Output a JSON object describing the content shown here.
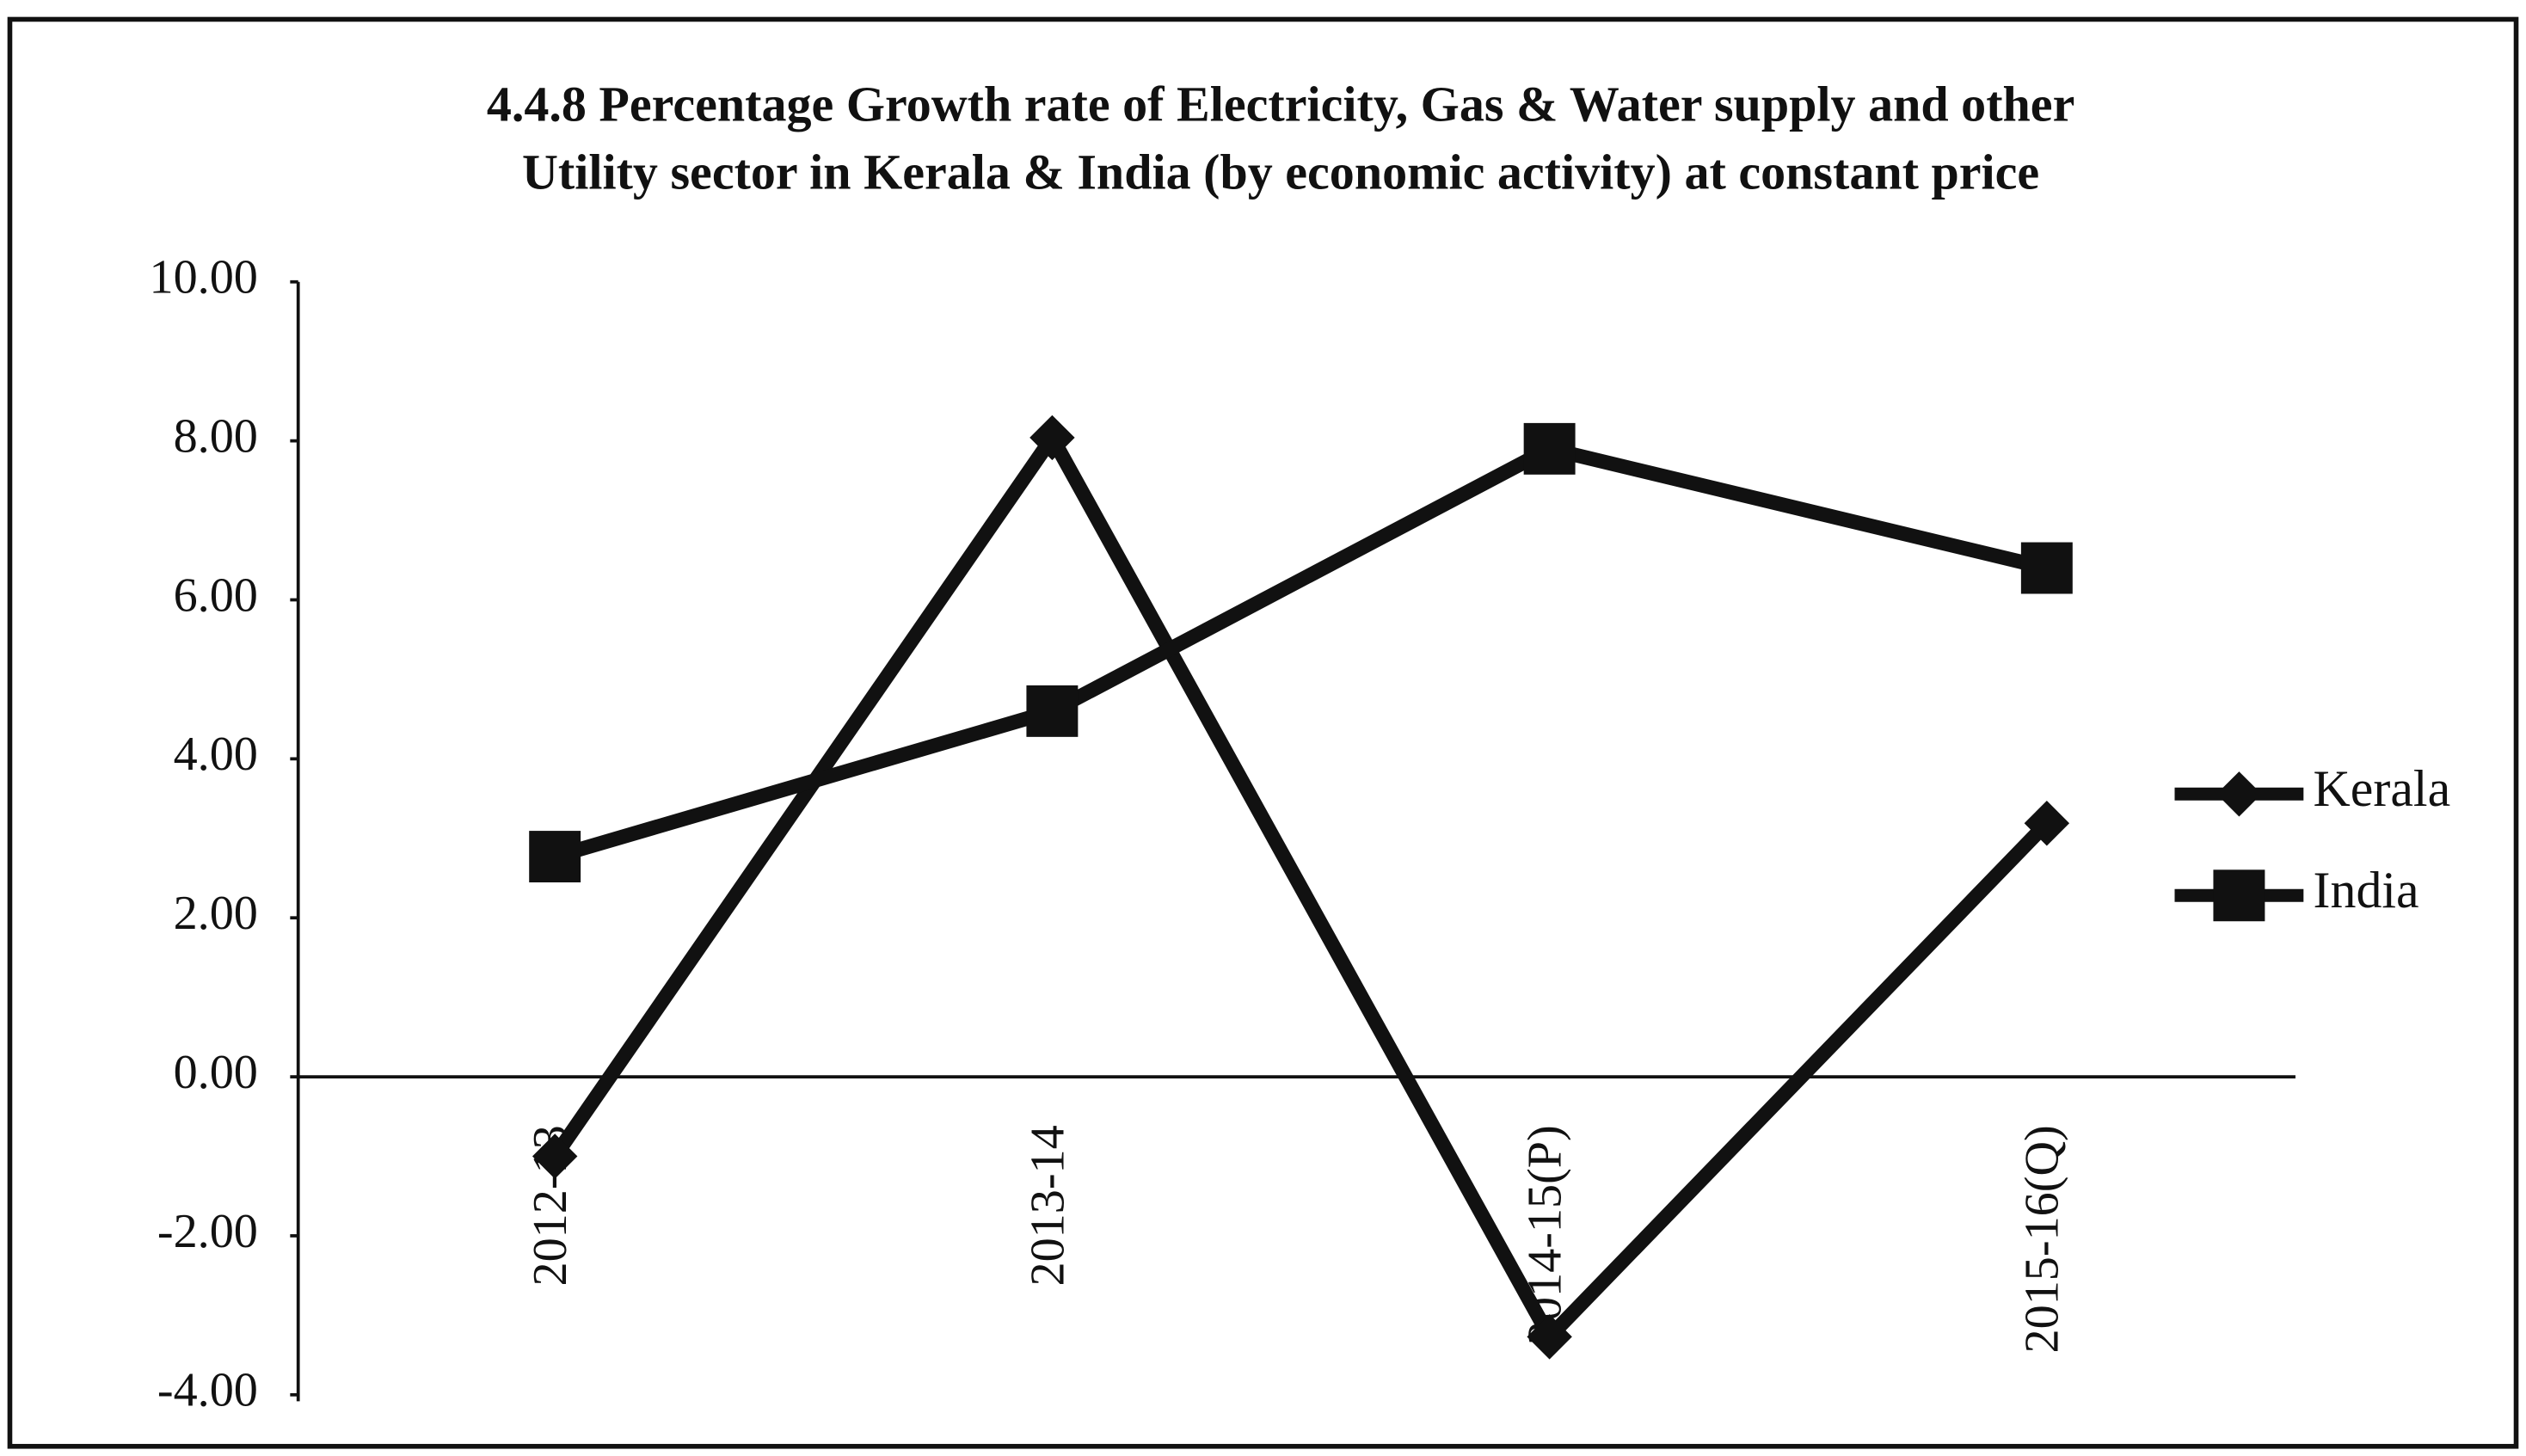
{
  "chart_data": {
    "type": "line",
    "title": [
      "4.4.8 Percentage Growth rate of Electricity, Gas & Water supply and other",
      "Utility sector in Kerala & India (by economic activity) at constant price"
    ],
    "categories": [
      "2012-13",
      "2013-14",
      "2014-15(P)",
      "2015-16(Q)"
    ],
    "series": [
      {
        "name": "Kerala",
        "color": "#111111",
        "marker": "diamond",
        "values": [
          -1.0,
          8.04,
          -3.27,
          3.19
        ]
      },
      {
        "name": "India",
        "color": "#111111",
        "marker": "square",
        "values": [
          2.77,
          4.6,
          7.9,
          6.4
        ]
      }
    ],
    "ylim": [
      -4,
      10
    ],
    "yticks": [
      {
        "value": -4,
        "label": "-4.00"
      },
      {
        "value": -2,
        "label": "-2.00"
      },
      {
        "value": 0,
        "label": "0.00"
      },
      {
        "value": 2,
        "label": "2.00"
      },
      {
        "value": 4,
        "label": "4.00"
      },
      {
        "value": 6,
        "label": "6.00"
      },
      {
        "value": 8,
        "label": "8.00"
      },
      {
        "value": 10,
        "label": "10.00"
      }
    ],
    "legend": "right"
  }
}
